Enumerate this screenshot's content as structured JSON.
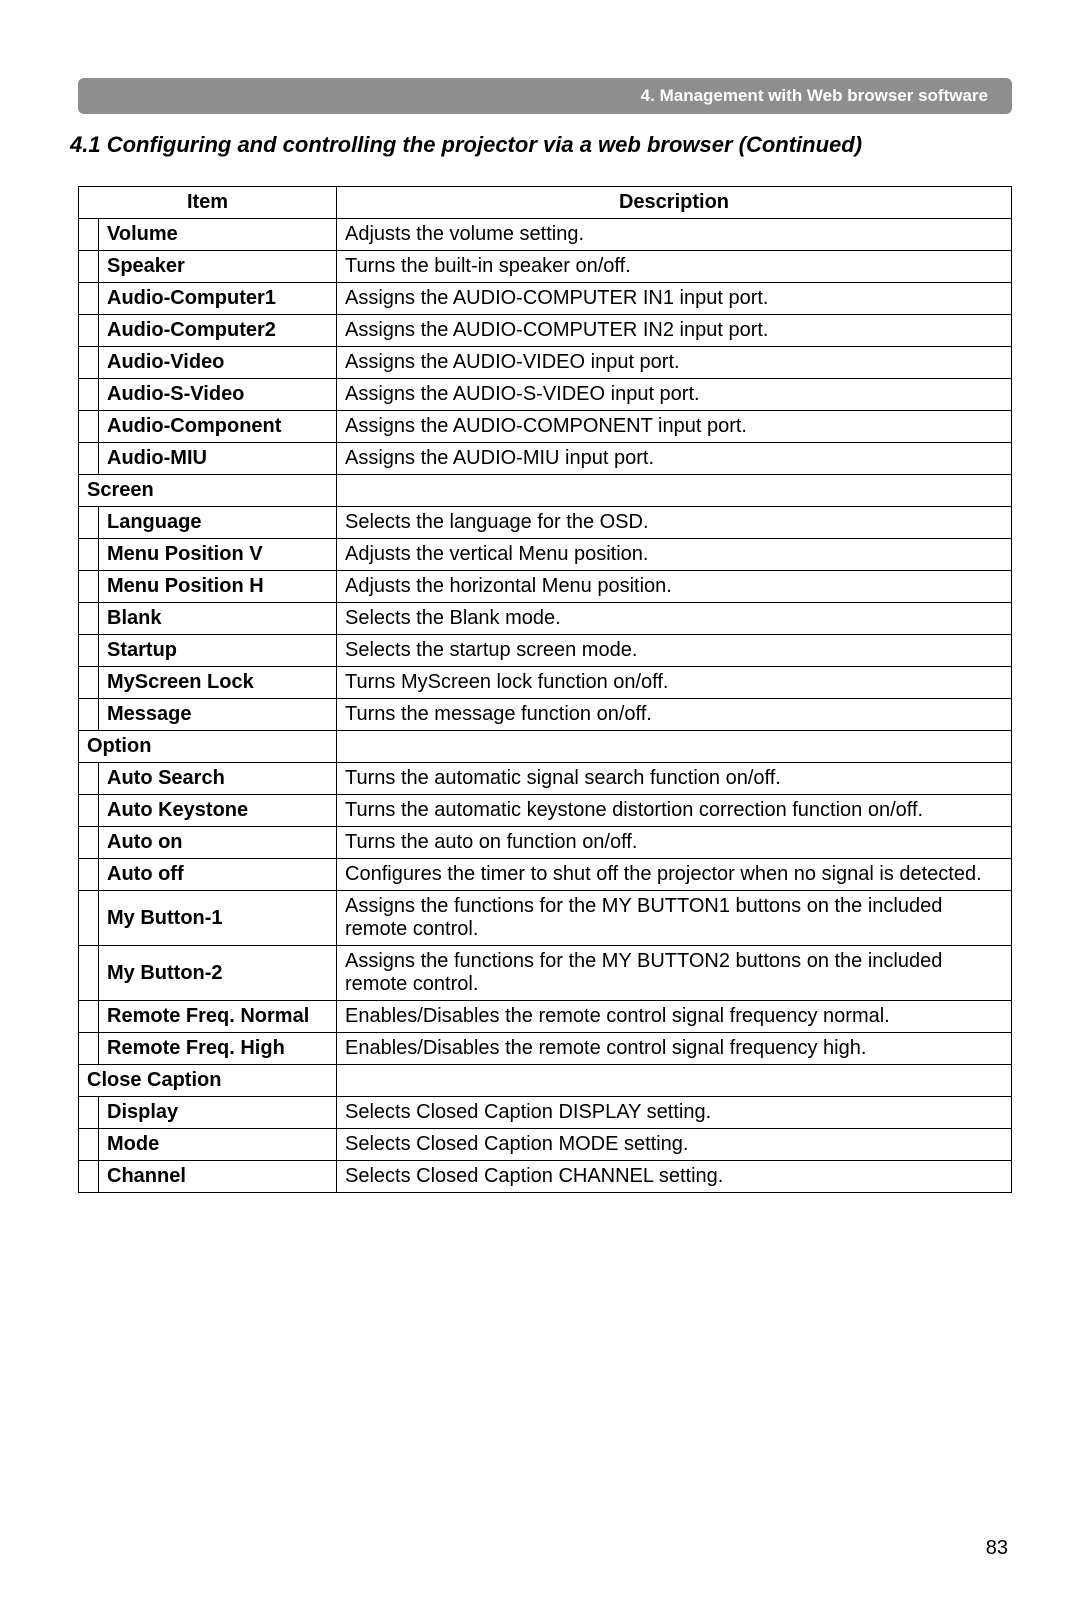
{
  "breadcrumb": "4. Management with Web browser software",
  "sectionTitle": "4.1 Configuring and controlling the projector via a web browser (Continued)",
  "pageNumber": "83",
  "headers": {
    "item": "Item",
    "description": "Description"
  },
  "colors": {
    "breadcrumbBg": "#8e8e8e",
    "breadcrumbText": "#ffffff",
    "border": "#000000",
    "text": "#000000",
    "background": "#ffffff"
  },
  "rows": [
    {
      "type": "data",
      "item": "Volume",
      "desc": "Adjusts the volume setting."
    },
    {
      "type": "data",
      "item": "Speaker",
      "desc": "Turns the built-in speaker on/off."
    },
    {
      "type": "data",
      "item": "Audio-Computer1",
      "desc": "Assigns the AUDIO-COMPUTER IN1 input port."
    },
    {
      "type": "data",
      "item": "Audio-Computer2",
      "desc": "Assigns the AUDIO-COMPUTER IN2 input port."
    },
    {
      "type": "data",
      "item": "Audio-Video",
      "desc": "Assigns the AUDIO-VIDEO input port."
    },
    {
      "type": "data",
      "item": "Audio-S-Video",
      "desc": "Assigns the AUDIO-S-VIDEO input port."
    },
    {
      "type": "data",
      "item": "Audio-Component",
      "desc": "Assigns the AUDIO-COMPONENT input port."
    },
    {
      "type": "data",
      "item": "Audio-MIU",
      "desc": "Assigns the AUDIO-MIU input port."
    },
    {
      "type": "section",
      "label": "Screen"
    },
    {
      "type": "data",
      "item": "Language",
      "desc": "Selects the language for the OSD."
    },
    {
      "type": "data",
      "item": "Menu Position V",
      "desc": "Adjusts the vertical Menu position."
    },
    {
      "type": "data",
      "item": "Menu Position H",
      "desc": "Adjusts the horizontal Menu position."
    },
    {
      "type": "data",
      "item": "Blank",
      "desc": "Selects the Blank mode."
    },
    {
      "type": "data",
      "item": "Startup",
      "desc": "Selects the startup screen mode."
    },
    {
      "type": "data",
      "item": "MyScreen Lock",
      "desc": "Turns MyScreen lock function on/off."
    },
    {
      "type": "data",
      "item": "Message",
      "desc": "Turns the message function on/off."
    },
    {
      "type": "section",
      "label": "Option"
    },
    {
      "type": "data",
      "item": "Auto Search",
      "desc": "Turns the automatic signal search function on/off."
    },
    {
      "type": "data",
      "item": "Auto Keystone",
      "desc": "Turns the automatic keystone distortion correction function on/off."
    },
    {
      "type": "data",
      "item": "Auto on",
      "desc": "Turns the auto on function on/off."
    },
    {
      "type": "data",
      "item": "Auto off",
      "desc": "Configures the timer to shut off the projector when no signal is detected."
    },
    {
      "type": "data",
      "item": "My Button-1",
      "desc": "Assigns the functions for the MY BUTTON1 buttons on the included remote control."
    },
    {
      "type": "data",
      "item": "My Button-2",
      "desc": "Assigns the functions for the MY BUTTON2 buttons on the included remote control."
    },
    {
      "type": "data",
      "item": "Remote Freq. Normal",
      "desc": "Enables/Disables the remote control signal frequency normal."
    },
    {
      "type": "data",
      "item": "Remote Freq. High",
      "desc": "Enables/Disables the remote control signal frequency high."
    },
    {
      "type": "section",
      "label": "Close Caption"
    },
    {
      "type": "data",
      "item": "Display",
      "desc": "Selects Closed Caption DISPLAY setting."
    },
    {
      "type": "data",
      "item": "Mode",
      "desc": "Selects Closed Caption MODE setting."
    },
    {
      "type": "data",
      "item": "Channel",
      "desc": "Selects Closed Caption CHANNEL setting."
    }
  ]
}
